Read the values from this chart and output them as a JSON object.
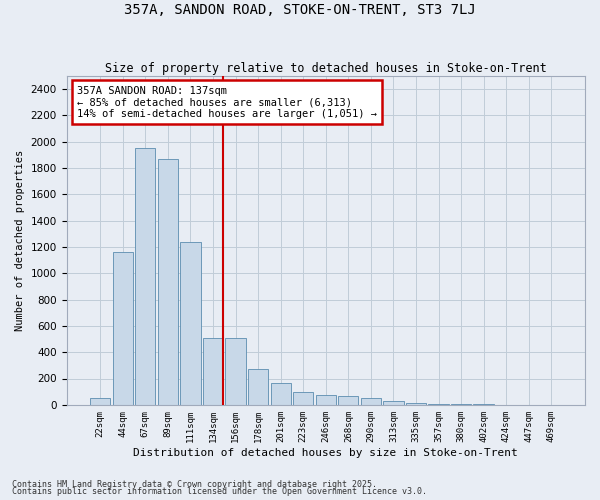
{
  "title_line1": "357A, SANDON ROAD, STOKE-ON-TRENT, ST3 7LJ",
  "title_line2": "Size of property relative to detached houses in Stoke-on-Trent",
  "xlabel": "Distribution of detached houses by size in Stoke-on-Trent",
  "ylabel": "Number of detached properties",
  "categories": [
    "22sqm",
    "44sqm",
    "67sqm",
    "89sqm",
    "111sqm",
    "134sqm",
    "156sqm",
    "178sqm",
    "201sqm",
    "223sqm",
    "246sqm",
    "268sqm",
    "290sqm",
    "313sqm",
    "335sqm",
    "357sqm",
    "380sqm",
    "402sqm",
    "424sqm",
    "447sqm",
    "469sqm"
  ],
  "values": [
    50,
    1160,
    1950,
    1870,
    1240,
    510,
    510,
    270,
    165,
    95,
    75,
    65,
    50,
    30,
    15,
    10,
    5,
    3,
    2,
    1,
    1
  ],
  "bar_color": "#c8d8e8",
  "bar_edge_color": "#5b8db0",
  "grid_color": "#c0ccd8",
  "background_color": "#e8edf4",
  "annotation_text": "357A SANDON ROAD: 137sqm\n← 85% of detached houses are smaller (6,313)\n14% of semi-detached houses are larger (1,051) →",
  "annotation_box_color": "#ffffff",
  "annotation_box_edge": "#cc0000",
  "vline_color": "#cc0000",
  "ylim": [
    0,
    2500
  ],
  "yticks": [
    0,
    200,
    400,
    600,
    800,
    1000,
    1200,
    1400,
    1600,
    1800,
    2000,
    2200,
    2400
  ],
  "footnote1": "Contains HM Land Registry data © Crown copyright and database right 2025.",
  "footnote2": "Contains public sector information licensed under the Open Government Licence v3.0."
}
